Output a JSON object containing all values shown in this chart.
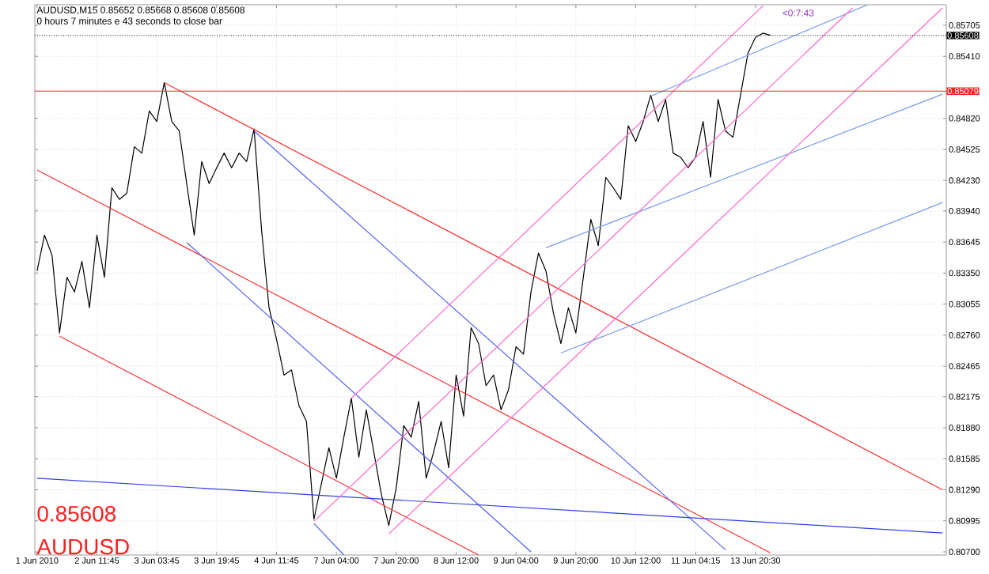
{
  "chart_data": {
    "type": "line",
    "title": "AUDUSD,M15  0.85652 0.85668 0.85608 0.85608",
    "subtitle": "0 hours 7 minutes e 43 seconds to close bar",
    "categories": [
      "1 Jun 2010",
      null,
      null,
      null,
      null,
      null,
      null,
      null,
      "2 Jun 11:45",
      null,
      null,
      null,
      null,
      null,
      null,
      null,
      "3 Jun 03:45",
      null,
      null,
      null,
      null,
      null,
      null,
      null,
      "3 Jun 19:45",
      null,
      null,
      null,
      null,
      null,
      null,
      null,
      "4 Jun 11:45",
      null,
      null,
      null,
      null,
      null,
      null,
      null,
      "7 Jun 04:00",
      null,
      null,
      null,
      null,
      null,
      null,
      null,
      "7 Jun 20:00",
      null,
      null,
      null,
      null,
      null,
      null,
      null,
      "8 Jun 12:00",
      null,
      null,
      null,
      null,
      null,
      null,
      null,
      "9 Jun 04:00",
      null,
      null,
      null,
      null,
      null,
      null,
      null,
      "9 Jun 20:00",
      null,
      null,
      null,
      null,
      null,
      null,
      null,
      "10 Jun 12:00",
      null,
      null,
      null,
      null,
      null,
      null,
      null,
      "11 Jun 04:15",
      null,
      null,
      null,
      null,
      null,
      null,
      null,
      "13 Jun 20:30",
      null,
      null,
      null,
      null,
      null,
      null,
      null,
      null,
      null,
      null,
      null,
      null,
      null,
      null,
      null,
      null,
      null,
      null,
      null,
      null,
      null,
      null,
      null,
      null,
      null
    ],
    "ylim": [
      0.8067,
      0.859
    ],
    "yticks": [
      0.85705,
      {
        "value": 0.8541,
        "label": "0.85410"
      },
      {
        "value": 0.8482,
        "label": "0.84820"
      },
      0.84525,
      {
        "value": 0.8423,
        "label": "0.84230"
      },
      {
        "value": 0.8394,
        "label": "0.83940"
      },
      0.83645,
      {
        "value": 0.8335,
        "label": "0.83350"
      },
      0.83055,
      {
        "value": 0.8276,
        "label": "0.82760"
      },
      0.82465,
      0.82175,
      {
        "value": 0.8188,
        "label": "0.81880"
      },
      0.81585,
      {
        "value": 0.8129,
        "label": "0.81290"
      },
      0.80995,
      {
        "value": 0.807,
        "label": "0.80700"
      }
    ],
    "grid": true,
    "marker": "none",
    "ref_lines": [
      {
        "axis": "y",
        "value": 0.85079,
        "label": "0.85079",
        "color": "#ff2020",
        "line_style": "solid"
      },
      {
        "axis": "y",
        "value": 0.85608,
        "label": "0.85608",
        "color": "#000000",
        "line_style": "dotted"
      }
    ],
    "annotations": [
      "0.85608",
      "AUDUSD",
      "<0:7:43"
    ],
    "series": [
      {
        "color": "#000000",
        "values": [
          0.8337,
          0.8371,
          0.8352,
          0.8278,
          0.8331,
          0.8317,
          0.8346,
          0.8302,
          0.8371,
          0.8331,
          0.8416,
          0.8405,
          0.8411,
          0.8455,
          0.8449,
          0.8489,
          0.8479,
          0.8516,
          0.8479,
          0.847,
          0.842,
          0.8371,
          0.8441,
          0.842,
          0.8435,
          0.8449,
          0.8435,
          0.8449,
          0.8441,
          0.8472,
          0.8376,
          0.8302,
          0.8272,
          0.8238,
          0.8243,
          0.8209,
          0.8194,
          0.8101,
          0.8135,
          0.8169,
          0.814,
          0.8179,
          0.8216,
          0.816,
          0.8205,
          0.8165,
          0.8125,
          0.8095,
          0.8131,
          0.819,
          0.8179,
          0.8213,
          0.814,
          0.8165,
          0.8194,
          0.815,
          0.8238,
          0.8199,
          0.8283,
          0.8268,
          0.8228,
          0.8238,
          0.8205,
          0.8224,
          0.8265,
          0.8258,
          0.8317,
          0.8354,
          0.8337,
          0.8297,
          0.8268,
          0.8302,
          0.8278,
          0.8331,
          0.8386,
          0.8361,
          0.8426,
          0.8416,
          0.8405,
          0.8475,
          0.846,
          0.8479,
          0.8504,
          0.8479,
          0.85,
          0.8449,
          0.8445,
          0.8435,
          0.8445,
          0.8479,
          0.8426,
          0.85,
          0.847,
          0.8464,
          0.8504,
          0.8544,
          0.8559,
          0.8563,
          0.8561,
          null,
          null,
          null,
          null,
          null,
          null,
          null,
          null,
          null,
          null,
          null,
          null,
          null,
          null,
          null,
          null,
          null,
          null,
          null,
          null,
          null,
          null,
          null
        ]
      },
      {
        "color": "#ff3030",
        "values": [
          null,
          null,
          null,
          null,
          null,
          null,
          null,
          null,
          null,
          null,
          null,
          null,
          null,
          null,
          null,
          null,
          null,
          0.8516,
          null,
          null,
          null,
          null,
          null,
          null,
          null,
          null,
          null,
          null,
          null,
          null,
          null,
          null,
          null,
          null,
          null,
          null,
          null,
          null,
          null,
          null,
          null,
          null,
          null,
          null,
          null,
          null,
          null,
          null,
          null,
          null,
          null,
          null,
          null,
          null,
          null,
          null,
          null,
          null,
          null,
          null,
          null,
          null,
          null,
          null,
          null,
          null,
          null,
          null,
          null,
          null,
          null,
          null,
          null,
          null,
          null,
          null,
          null,
          null,
          null,
          null,
          null,
          null,
          null,
          null,
          null,
          null,
          null,
          null,
          null,
          null,
          null,
          null,
          null,
          null,
          null,
          null,
          null,
          null,
          null,
          null,
          null,
          null,
          null,
          null,
          null,
          null,
          null,
          null,
          null,
          null,
          null,
          null,
          null,
          null,
          null,
          null,
          null,
          null,
          null,
          null,
          null,
          0.8129
        ]
      },
      {
        "color": "#ff3030",
        "values": [
          0.8433,
          null,
          null,
          null,
          null,
          null,
          null,
          null,
          null,
          null,
          null,
          null,
          null,
          null,
          null,
          null,
          null,
          null,
          null,
          null,
          null,
          null,
          null,
          null,
          null,
          null,
          null,
          null,
          null,
          null,
          null,
          null,
          null,
          null,
          null,
          null,
          null,
          null,
          null,
          null,
          null,
          null,
          null,
          null,
          null,
          null,
          null,
          null,
          null,
          null,
          null,
          null,
          null,
          null,
          null,
          null,
          null,
          null,
          null,
          null,
          null,
          null,
          null,
          null,
          null,
          null,
          null,
          null,
          null,
          null,
          null,
          null,
          null,
          null,
          null,
          null,
          null,
          null,
          null,
          null,
          null,
          null,
          null,
          null,
          null,
          null,
          null,
          null,
          null,
          null,
          null,
          null,
          null,
          null,
          null,
          null,
          null,
          null,
          0.8069,
          null,
          null,
          null,
          null,
          null,
          null,
          null,
          null,
          null,
          null,
          null,
          null,
          null,
          null,
          null,
          null,
          null,
          null,
          null,
          null,
          null,
          null,
          null
        ]
      },
      {
        "color": "#ff3030",
        "values": [
          null,
          null,
          null,
          0.8275,
          null,
          null,
          null,
          null,
          null,
          null,
          null,
          null,
          null,
          null,
          null,
          null,
          null,
          null,
          null,
          null,
          null,
          null,
          null,
          null,
          null,
          null,
          null,
          null,
          null,
          null,
          null,
          null,
          null,
          null,
          null,
          null,
          null,
          null,
          null,
          null,
          null,
          null,
          null,
          null,
          null,
          null,
          null,
          null,
          null,
          null,
          null,
          null,
          null,
          null,
          null,
          null,
          null,
          null,
          null,
          0.8067,
          null,
          null,
          null,
          null,
          null,
          null,
          null,
          null,
          null,
          null,
          null,
          null,
          null,
          null,
          null,
          null,
          null,
          null,
          null,
          null,
          null,
          null,
          null,
          null,
          null,
          null,
          null,
          null,
          null,
          null,
          null,
          null,
          null,
          null,
          null,
          null,
          null,
          null,
          null,
          null,
          null,
          null,
          null,
          null,
          null,
          null,
          null,
          null,
          null,
          null,
          null,
          null,
          null,
          null,
          null,
          null,
          null,
          null,
          null,
          null,
          null,
          null
        ]
      },
      {
        "color": "#5060ee",
        "values": [
          null,
          null,
          null,
          null,
          null,
          null,
          null,
          null,
          null,
          null,
          null,
          null,
          null,
          null,
          null,
          null,
          null,
          null,
          null,
          null,
          null,
          null,
          null,
          null,
          null,
          null,
          null,
          null,
          null,
          0.847,
          null,
          null,
          null,
          null,
          null,
          null,
          null,
          null,
          null,
          null,
          null,
          null,
          null,
          null,
          null,
          null,
          null,
          null,
          null,
          null,
          null,
          null,
          null,
          null,
          null,
          null,
          null,
          null,
          null,
          null,
          null,
          null,
          null,
          null,
          null,
          null,
          null,
          null,
          null,
          null,
          null,
          null,
          null,
          null,
          null,
          null,
          null,
          null,
          null,
          null,
          null,
          null,
          null,
          null,
          null,
          null,
          null,
          null,
          null,
          null,
          null,
          null,
          0.8072,
          null,
          null,
          null,
          null,
          null,
          null,
          null,
          null,
          null,
          null,
          null,
          null,
          null,
          null,
          null,
          null,
          null,
          null,
          null,
          null,
          null,
          null,
          null,
          null,
          null,
          null,
          null,
          null,
          null
        ]
      },
      {
        "color": "#5060ee",
        "values": [
          null,
          null,
          null,
          null,
          null,
          null,
          null,
          null,
          null,
          null,
          null,
          null,
          null,
          null,
          null,
          null,
          null,
          null,
          null,
          null,
          0.8364,
          null,
          null,
          null,
          null,
          null,
          null,
          null,
          null,
          null,
          null,
          null,
          null,
          null,
          null,
          null,
          null,
          null,
          null,
          null,
          null,
          null,
          null,
          null,
          null,
          null,
          null,
          null,
          null,
          null,
          null,
          null,
          null,
          null,
          null,
          null,
          null,
          null,
          null,
          null,
          null,
          null,
          null,
          null,
          null,
          null,
          0.807,
          null,
          null,
          null,
          null,
          null,
          null,
          null,
          null,
          null,
          null,
          null,
          null,
          null,
          null,
          null,
          null,
          null,
          null,
          null,
          null,
          null,
          null,
          null,
          null,
          null,
          null,
          null,
          null,
          null,
          null,
          null,
          null,
          null,
          null,
          null,
          null,
          null,
          null,
          null,
          null,
          null,
          null,
          null,
          null,
          null,
          null,
          null,
          null,
          null,
          null,
          null,
          null,
          null,
          null,
          null
        ]
      },
      {
        "color": "#5060ee",
        "values": [
          null,
          null,
          null,
          null,
          null,
          null,
          null,
          null,
          null,
          null,
          null,
          null,
          null,
          null,
          null,
          null,
          null,
          null,
          null,
          null,
          null,
          null,
          null,
          null,
          null,
          null,
          null,
          null,
          null,
          null,
          null,
          null,
          null,
          null,
          null,
          null,
          null,
          0.8097,
          null,
          null,
          null,
          0.8067,
          null,
          null,
          null,
          null,
          null,
          null,
          null,
          null,
          null,
          null,
          null,
          null,
          null,
          null,
          null,
          null,
          null,
          null,
          null,
          null,
          null,
          null,
          null,
          null,
          null,
          null,
          null,
          null,
          null,
          null,
          null,
          null,
          null,
          null,
          null,
          null,
          null,
          null,
          null,
          null,
          null,
          null,
          null,
          null,
          null,
          null,
          null,
          null,
          null,
          null,
          null,
          null,
          null,
          null,
          null,
          null,
          null,
          null,
          null,
          null,
          null,
          null,
          null,
          null,
          null,
          null,
          null,
          null,
          null,
          null,
          null,
          null,
          null,
          null,
          null,
          null,
          null,
          null,
          null,
          null
        ]
      },
      {
        "color": "#3040e0",
        "values": [
          0.814,
          null,
          null,
          null,
          null,
          null,
          null,
          null,
          null,
          null,
          null,
          null,
          null,
          null,
          null,
          null,
          null,
          null,
          null,
          null,
          null,
          null,
          null,
          null,
          null,
          null,
          null,
          null,
          null,
          null,
          null,
          null,
          null,
          null,
          null,
          null,
          null,
          null,
          null,
          null,
          null,
          null,
          null,
          null,
          null,
          null,
          null,
          null,
          null,
          null,
          null,
          null,
          null,
          null,
          null,
          null,
          null,
          null,
          null,
          null,
          null,
          null,
          null,
          null,
          null,
          null,
          null,
          null,
          null,
          null,
          null,
          null,
          null,
          null,
          null,
          null,
          null,
          null,
          null,
          null,
          null,
          null,
          null,
          null,
          null,
          null,
          null,
          null,
          null,
          null,
          null,
          null,
          null,
          null,
          null,
          null,
          null,
          null,
          null,
          null,
          null,
          null,
          null,
          null,
          null,
          null,
          null,
          null,
          null,
          null,
          null,
          null,
          null,
          null,
          null,
          null,
          null,
          null,
          null,
          null,
          null,
          0.8088
        ]
      },
      {
        "color": "#7799ee",
        "values": [
          null,
          null,
          null,
          null,
          null,
          null,
          null,
          null,
          null,
          null,
          null,
          null,
          null,
          null,
          null,
          null,
          null,
          null,
          null,
          null,
          null,
          null,
          null,
          null,
          null,
          null,
          null,
          null,
          null,
          null,
          null,
          null,
          null,
          null,
          null,
          null,
          null,
          null,
          null,
          null,
          null,
          null,
          null,
          null,
          null,
          null,
          null,
          null,
          null,
          null,
          null,
          null,
          null,
          null,
          null,
          null,
          null,
          null,
          null,
          null,
          null,
          null,
          null,
          null,
          null,
          null,
          null,
          null,
          0.8359,
          null,
          null,
          null,
          null,
          null,
          null,
          null,
          null,
          null,
          null,
          null,
          null,
          null,
          null,
          null,
          null,
          null,
          null,
          null,
          null,
          null,
          null,
          null,
          null,
          null,
          null,
          null,
          null,
          null,
          null,
          null,
          null,
          null,
          null,
          null,
          null,
          null,
          null,
          null,
          null,
          null,
          null,
          null,
          null,
          null,
          null,
          null,
          null,
          null,
          null,
          null,
          null,
          0.8505
        ]
      },
      {
        "color": "#7799ee",
        "values": [
          null,
          null,
          null,
          null,
          null,
          null,
          null,
          null,
          null,
          null,
          null,
          null,
          null,
          null,
          null,
          null,
          null,
          null,
          null,
          null,
          null,
          null,
          null,
          null,
          null,
          null,
          null,
          null,
          null,
          null,
          null,
          null,
          null,
          null,
          null,
          null,
          null,
          null,
          null,
          null,
          null,
          null,
          null,
          null,
          null,
          null,
          null,
          null,
          null,
          null,
          null,
          null,
          null,
          null,
          null,
          null,
          null,
          null,
          null,
          null,
          null,
          null,
          null,
          null,
          null,
          null,
          null,
          null,
          null,
          null,
          0.8259,
          null,
          null,
          null,
          null,
          null,
          null,
          null,
          null,
          null,
          null,
          null,
          null,
          null,
          null,
          null,
          null,
          null,
          null,
          null,
          null,
          null,
          null,
          null,
          null,
          null,
          null,
          null,
          null,
          null,
          null,
          null,
          null,
          null,
          null,
          null,
          null,
          null,
          null,
          null,
          null,
          null,
          null,
          null,
          null,
          null,
          null,
          null,
          null,
          null,
          null,
          0.8402
        ]
      },
      {
        "color": "#7799ee",
        "values": [
          null,
          null,
          null,
          null,
          null,
          null,
          null,
          null,
          null,
          null,
          null,
          null,
          null,
          null,
          null,
          null,
          null,
          null,
          null,
          null,
          null,
          null,
          null,
          null,
          null,
          null,
          null,
          null,
          null,
          null,
          null,
          null,
          null,
          null,
          null,
          null,
          null,
          null,
          null,
          null,
          null,
          null,
          null,
          null,
          null,
          null,
          null,
          null,
          null,
          null,
          null,
          null,
          null,
          null,
          null,
          null,
          null,
          null,
          null,
          null,
          null,
          null,
          null,
          null,
          null,
          null,
          null,
          null,
          null,
          null,
          null,
          null,
          null,
          null,
          null,
          null,
          null,
          null,
          null,
          null,
          null,
          null,
          0.8503,
          null,
          null,
          null,
          null,
          null,
          null,
          null,
          null,
          null,
          null,
          null,
          null,
          null,
          null,
          null,
          null,
          null,
          null,
          null,
          null,
          null,
          null,
          null,
          null,
          null,
          null,
          null,
          null,
          0.859,
          null,
          null,
          null,
          null,
          null,
          null,
          null,
          null,
          null,
          null
        ]
      },
      {
        "color": "#ff66cc",
        "values": [
          null,
          null,
          null,
          null,
          null,
          null,
          null,
          null,
          null,
          null,
          null,
          null,
          null,
          null,
          null,
          null,
          null,
          null,
          null,
          null,
          null,
          null,
          null,
          null,
          null,
          null,
          null,
          null,
          null,
          null,
          null,
          null,
          null,
          null,
          null,
          null,
          null,
          null,
          null,
          null,
          null,
          null,
          0.8216,
          null,
          null,
          null,
          null,
          null,
          null,
          null,
          null,
          null,
          null,
          null,
          null,
          null,
          null,
          null,
          null,
          null,
          null,
          null,
          null,
          null,
          null,
          null,
          null,
          null,
          null,
          null,
          null,
          null,
          null,
          null,
          null,
          null,
          null,
          null,
          null,
          null,
          null,
          null,
          null,
          null,
          null,
          null,
          null,
          null,
          null,
          null,
          null,
          null,
          null,
          null,
          null,
          null,
          null,
          0.8589,
          null,
          null,
          null,
          null,
          null,
          null,
          null,
          null,
          null,
          null,
          null,
          null,
          null,
          null,
          null,
          null,
          null,
          null,
          null,
          null,
          null,
          null,
          null,
          null
        ]
      },
      {
        "color": "#ff66cc",
        "values": [
          null,
          null,
          null,
          null,
          null,
          null,
          null,
          null,
          null,
          null,
          null,
          null,
          null,
          null,
          null,
          null,
          null,
          null,
          null,
          null,
          null,
          null,
          null,
          null,
          null,
          null,
          null,
          null,
          null,
          null,
          null,
          null,
          null,
          null,
          null,
          null,
          null,
          0.8099,
          null,
          null,
          null,
          null,
          null,
          null,
          null,
          null,
          null,
          null,
          null,
          null,
          null,
          null,
          null,
          null,
          null,
          null,
          null,
          null,
          null,
          null,
          null,
          null,
          null,
          null,
          null,
          null,
          null,
          null,
          null,
          null,
          null,
          null,
          null,
          null,
          null,
          null,
          null,
          null,
          null,
          null,
          null,
          null,
          null,
          null,
          null,
          null,
          null,
          null,
          null,
          null,
          null,
          null,
          null,
          null,
          null,
          null,
          null,
          null,
          null,
          null,
          null,
          null,
          null,
          null,
          null,
          null,
          null,
          null,
          null,
          0.8587,
          null,
          null,
          null,
          null,
          null,
          null,
          null,
          null,
          null,
          null,
          null,
          null
        ]
      },
      {
        "color": "#ff66cc",
        "values": [
          null,
          null,
          null,
          null,
          null,
          null,
          null,
          null,
          null,
          null,
          null,
          null,
          null,
          null,
          null,
          null,
          null,
          null,
          null,
          null,
          null,
          null,
          null,
          null,
          null,
          null,
          null,
          null,
          null,
          null,
          null,
          null,
          null,
          null,
          null,
          null,
          null,
          null,
          null,
          null,
          null,
          null,
          null,
          null,
          null,
          null,
          null,
          0.8087,
          null,
          null,
          null,
          null,
          null,
          null,
          null,
          null,
          null,
          null,
          null,
          null,
          null,
          null,
          null,
          null,
          null,
          null,
          null,
          null,
          null,
          null,
          null,
          null,
          null,
          null,
          null,
          null,
          null,
          null,
          null,
          null,
          null,
          null,
          null,
          null,
          null,
          null,
          null,
          null,
          null,
          null,
          null,
          null,
          null,
          null,
          null,
          null,
          null,
          null,
          null,
          null,
          null,
          null,
          null,
          null,
          null,
          null,
          null,
          null,
          null,
          null,
          null,
          null,
          null,
          null,
          null,
          null,
          null,
          null,
          null,
          null,
          null,
          0.8587
        ]
      }
    ]
  }
}
